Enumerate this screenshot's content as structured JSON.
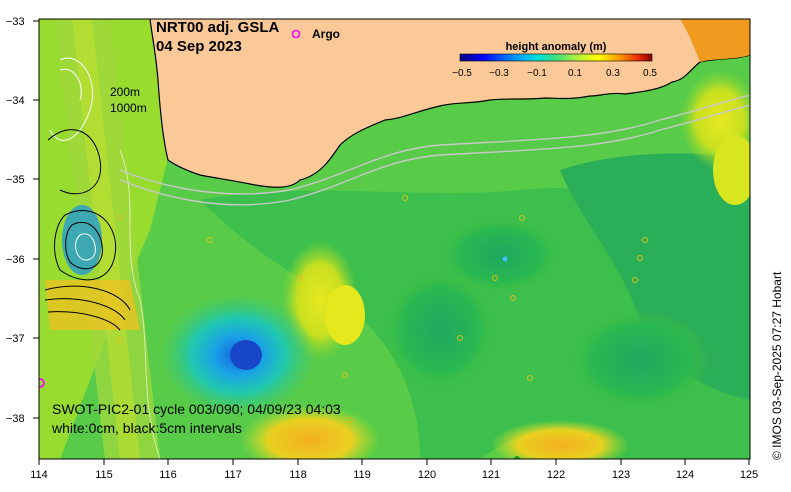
{
  "title": {
    "product": "NRT00 adj. GSLA",
    "date": "04 Sep 2023"
  },
  "argo_legend": {
    "marker": "o",
    "label": "Argo",
    "color": "#ff00ff"
  },
  "isobaths": {
    "shallow": "200m",
    "deep": "1000m"
  },
  "colorbar": {
    "title": "height anomaly (m)",
    "ticks": [
      "−0.5",
      "−0.3",
      "−0.1",
      "0.1",
      "0.3",
      "0.5"
    ],
    "colors": [
      "#00007f",
      "#0000ff",
      "#0080ff",
      "#00e0ff",
      "#40ffb0",
      "#a0ff40",
      "#ffff00",
      "#ffa000",
      "#ff4000",
      "#c00000",
      "#800000"
    ]
  },
  "axes": {
    "lon_ticks": [
      "114",
      "115",
      "116",
      "117",
      "118",
      "119",
      "120",
      "121",
      "122",
      "123",
      "124",
      "125"
    ],
    "lat_ticks": [
      "−33",
      "−34",
      "−35",
      "−36",
      "−37",
      "−38"
    ]
  },
  "swot_note": {
    "line1": "SWOT-PIC2-01 cycle 003/090; 04/09/23 04:03",
    "line2": "white:0cm, black:5cm intervals"
  },
  "credit": "© IMOS 03-Sep-2025 07:27 Hobart",
  "colors": {
    "land": "#fbc898",
    "ocean_base": "#5cd24a",
    "low_anomaly": "#1a8fe0",
    "high_anomaly": "#f4a020"
  }
}
